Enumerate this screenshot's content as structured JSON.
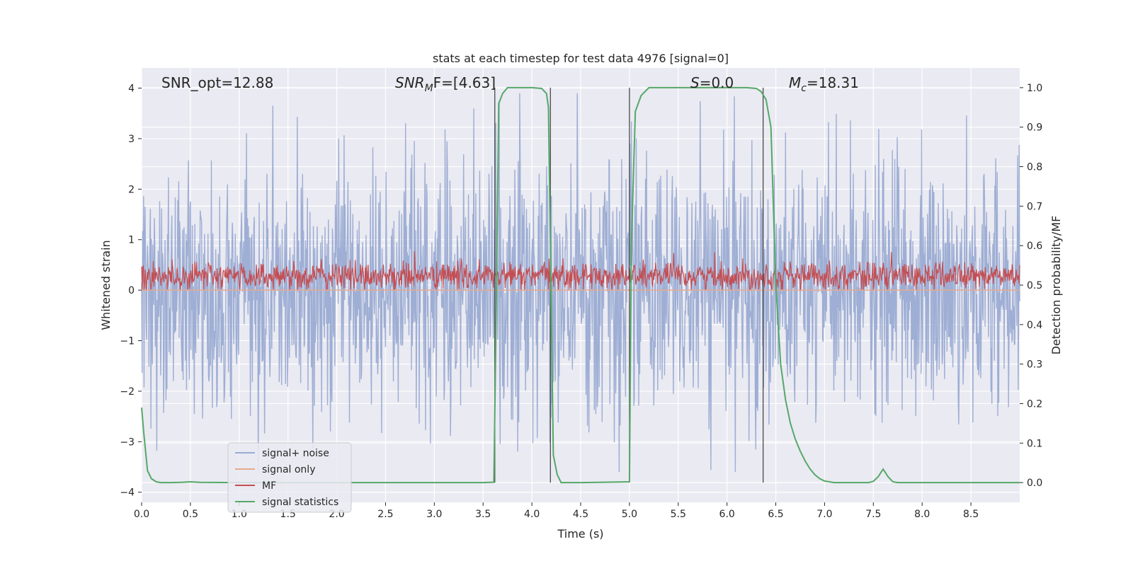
{
  "chart_data": {
    "type": "line",
    "title": "stats at each timestep for test data 4976 [signal=0]",
    "xlabel": "Time (s)",
    "ylabel": "Whitened strain",
    "y2label": "Detection probability/MF",
    "xlim": [
      0.0,
      9.0
    ],
    "ylim": [
      -4.2,
      4.4
    ],
    "y2lim": [
      -0.05,
      1.05
    ],
    "xticks": [
      "0.0",
      "0.5",
      "1.0",
      "1.5",
      "2.0",
      "2.5",
      "3.0",
      "3.5",
      "4.0",
      "4.5",
      "5.0",
      "5.5",
      "6.0",
      "6.5",
      "7.0",
      "7.5",
      "8.0",
      "8.5"
    ],
    "xtick_values": [
      0,
      0.5,
      1,
      1.5,
      2,
      2.5,
      3,
      3.5,
      4,
      4.5,
      5,
      5.5,
      6,
      6.5,
      7,
      7.5,
      8,
      8.5
    ],
    "yticks": [
      "−4",
      "−3",
      "−2",
      "−1",
      "0",
      "1",
      "2",
      "3",
      "4"
    ],
    "ytick_values": [
      -4,
      -3,
      -2,
      -1,
      0,
      1,
      2,
      3,
      4
    ],
    "y2ticks": [
      "0.0",
      "0.1",
      "0.2",
      "0.3",
      "0.4",
      "0.5",
      "0.6",
      "0.7",
      "0.8",
      "0.9",
      "1.0"
    ],
    "y2tick_values": [
      0,
      0.1,
      0.2,
      0.3,
      0.4,
      0.5,
      0.6,
      0.7,
      0.8,
      0.9,
      1.0
    ],
    "annotations": {
      "snr_opt": "SNR_opt=12.88",
      "snr_mf_main": "SNR",
      "snr_mf_sub": "M",
      "snr_mf_tail": "F=[4.63]",
      "s_main": "S",
      "s_tail": "=0.0",
      "mc_main": "M",
      "mc_sub": "c",
      "mc_tail": "=18.31"
    },
    "vertical_lines_x": [
      3.62,
      4.19,
      5.0,
      6.37
    ],
    "legend": {
      "position": "lower-left",
      "entries": [
        {
          "label": "signal+ noise",
          "color": "#9aabd2"
        },
        {
          "label": "signal only",
          "color": "#e8a98c"
        },
        {
          "label": "MF",
          "color": "#c44e52"
        },
        {
          "label": "signal statistics",
          "color": "#55a868"
        }
      ]
    },
    "series": [
      {
        "name": "signal statistics",
        "axis": "y2",
        "x": [
          0.0,
          0.02,
          0.06,
          0.1,
          0.15,
          0.2,
          0.3,
          0.4,
          0.5,
          0.6,
          1.0,
          2.0,
          3.0,
          3.5,
          3.61,
          3.63,
          3.66,
          3.7,
          3.75,
          3.8,
          4.0,
          4.1,
          4.15,
          4.17,
          4.22,
          4.26,
          4.3,
          4.4,
          4.5,
          5.0,
          5.02,
          5.06,
          5.12,
          5.2,
          5.5,
          6.0,
          6.2,
          6.3,
          6.35,
          6.4,
          6.45,
          6.5,
          6.55,
          6.6,
          6.65,
          6.7,
          6.75,
          6.8,
          6.85,
          6.9,
          6.95,
          7.0,
          7.1,
          7.3,
          7.45,
          7.5,
          7.55,
          7.6,
          7.65,
          7.7,
          7.75,
          7.8,
          8.0,
          8.5,
          9.0
        ],
        "values": [
          0.19,
          0.13,
          0.03,
          0.01,
          0.002,
          0.0,
          0.0,
          0.0005,
          0.002,
          0.0005,
          0.0,
          0.0,
          0.0,
          0.0,
          0.001,
          0.35,
          0.96,
          0.985,
          1.0,
          1.0,
          1.0,
          0.998,
          0.985,
          0.95,
          0.07,
          0.02,
          0.0,
          0.0,
          0.0,
          0.002,
          0.6,
          0.94,
          0.98,
          1.0,
          1.0,
          1.0,
          1.0,
          0.998,
          0.99,
          0.97,
          0.9,
          0.5,
          0.3,
          0.21,
          0.15,
          0.11,
          0.08,
          0.055,
          0.035,
          0.02,
          0.01,
          0.004,
          0.0,
          0.0,
          0.0,
          0.003,
          0.015,
          0.034,
          0.015,
          0.002,
          0.0,
          0.0,
          0.0,
          0.0,
          0.0
        ]
      },
      {
        "name": "MF",
        "axis": "y1",
        "description": "noisy positive trace, range 0.0 to 1.0, centered ~0.3"
      },
      {
        "name": "signal+ noise",
        "axis": "y1",
        "description": "dense whitened noise, range -3.6 to 3.9"
      },
      {
        "name": "signal only",
        "axis": "y1",
        "description": "flat line at 0.0"
      }
    ]
  }
}
